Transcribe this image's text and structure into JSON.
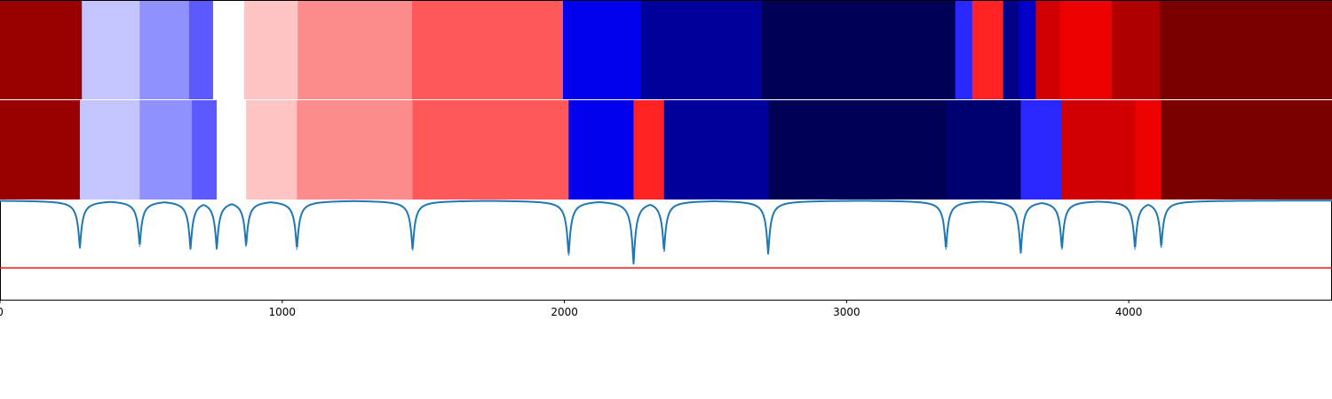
{
  "chart_data": {
    "type": "heatmap",
    "title": "",
    "xlabel": "",
    "ylabel": "",
    "xlim": [
      0,
      4720
    ],
    "x_ticks": [
      0,
      1000,
      2000,
      3000,
      4000
    ],
    "grid": false,
    "legend": "none",
    "colors": {
      "line": "#1f77b4",
      "threshold": "#e41a1c",
      "axis": "#000000",
      "separator": "#ffffff"
    },
    "segment_rows": [
      {
        "segments": [
          {
            "start": 0,
            "end": 290,
            "color": "#990000"
          },
          {
            "start": 290,
            "end": 495,
            "color": "#c4c4ff"
          },
          {
            "start": 495,
            "end": 670,
            "color": "#9090ff"
          },
          {
            "start": 670,
            "end": 755,
            "color": "#5a5aff"
          },
          {
            "start": 755,
            "end": 865,
            "color": "#ffffff"
          },
          {
            "start": 865,
            "end": 1055,
            "color": "#ffc4c4"
          },
          {
            "start": 1055,
            "end": 1460,
            "color": "#ff8c8c"
          },
          {
            "start": 1460,
            "end": 1995,
            "color": "#ff5858"
          },
          {
            "start": 1995,
            "end": 2270,
            "color": "#0000ee"
          },
          {
            "start": 2270,
            "end": 2700,
            "color": "#00009a"
          },
          {
            "start": 2700,
            "end": 3385,
            "color": "#000055"
          },
          {
            "start": 3385,
            "end": 3445,
            "color": "#2828ff"
          },
          {
            "start": 3445,
            "end": 3555,
            "color": "#ff2222"
          },
          {
            "start": 3555,
            "end": 3610,
            "color": "#000088"
          },
          {
            "start": 3610,
            "end": 3670,
            "color": "#0000c8"
          },
          {
            "start": 3670,
            "end": 3755,
            "color": "#d00000"
          },
          {
            "start": 3755,
            "end": 3940,
            "color": "#ee0000"
          },
          {
            "start": 3940,
            "end": 4110,
            "color": "#b00000"
          },
          {
            "start": 4110,
            "end": 4720,
            "color": "#7a0000"
          }
        ]
      },
      {
        "segments": [
          {
            "start": 0,
            "end": 283,
            "color": "#990000"
          },
          {
            "start": 283,
            "end": 495,
            "color": "#c4c4ff"
          },
          {
            "start": 495,
            "end": 680,
            "color": "#9090ff"
          },
          {
            "start": 680,
            "end": 768,
            "color": "#5a5aff"
          },
          {
            "start": 768,
            "end": 872,
            "color": "#ffffff"
          },
          {
            "start": 872,
            "end": 1052,
            "color": "#ffc4c4"
          },
          {
            "start": 1052,
            "end": 1462,
            "color": "#ff8c8c"
          },
          {
            "start": 1462,
            "end": 2015,
            "color": "#ff5858"
          },
          {
            "start": 2015,
            "end": 2245,
            "color": "#0000ee"
          },
          {
            "start": 2245,
            "end": 2353,
            "color": "#ff2222"
          },
          {
            "start": 2353,
            "end": 2722,
            "color": "#00009a"
          },
          {
            "start": 2722,
            "end": 3352,
            "color": "#000055"
          },
          {
            "start": 3352,
            "end": 3617,
            "color": "#000070"
          },
          {
            "start": 3617,
            "end": 3763,
            "color": "#2828ff"
          },
          {
            "start": 3763,
            "end": 4022,
            "color": "#d00000"
          },
          {
            "start": 4022,
            "end": 4115,
            "color": "#ee0000"
          },
          {
            "start": 4115,
            "end": 4720,
            "color": "#7a0000"
          }
        ]
      }
    ],
    "line_series": {
      "ylim": [
        0,
        1
      ],
      "baseline": 1.0,
      "threshold": 0.32,
      "dips": [
        {
          "x": 283,
          "y": 0.52
        },
        {
          "x": 495,
          "y": 0.54
        },
        {
          "x": 675,
          "y": 0.51
        },
        {
          "x": 768,
          "y": 0.51
        },
        {
          "x": 872,
          "y": 0.54
        },
        {
          "x": 1052,
          "y": 0.51
        },
        {
          "x": 1462,
          "y": 0.5
        },
        {
          "x": 2015,
          "y": 0.45
        },
        {
          "x": 2245,
          "y": 0.36
        },
        {
          "x": 2353,
          "y": 0.49
        },
        {
          "x": 2722,
          "y": 0.46
        },
        {
          "x": 3352,
          "y": 0.51
        },
        {
          "x": 3617,
          "y": 0.47
        },
        {
          "x": 3763,
          "y": 0.51
        },
        {
          "x": 4022,
          "y": 0.51
        },
        {
          "x": 4115,
          "y": 0.53
        }
      ]
    }
  }
}
